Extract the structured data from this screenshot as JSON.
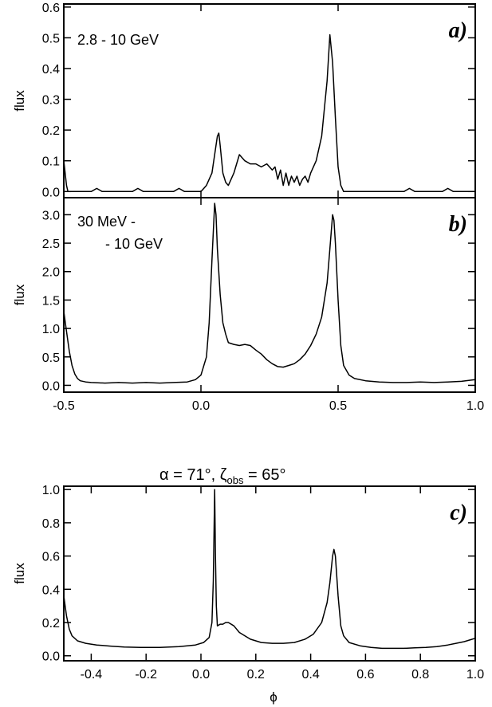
{
  "figure": {
    "title_prefix": "α = 71°,   ζ",
    "title_sub": "obs",
    "title_suffix": " = 65°",
    "xlabel": "ϕ"
  },
  "chart_data": [
    {
      "type": "line",
      "panel": "a)",
      "annotation": [
        "2.8 - 10 GeV"
      ],
      "ylabel": "flux",
      "xlim": [
        -0.5,
        1.0
      ],
      "ylim": [
        -0.02,
        0.61
      ],
      "yticks": [
        0.0,
        0.1,
        0.2,
        0.3,
        0.4,
        0.5,
        0.6
      ],
      "ytick_labels": [
        "0.0",
        "0.1",
        "0.2",
        "0.3",
        "0.4",
        "0.5",
        "0.6"
      ],
      "xticks": [
        -0.5,
        0.0,
        0.5,
        1.0
      ],
      "xtick_labels": [],
      "x": [
        -0.5,
        -0.49,
        -0.485,
        -0.47,
        -0.45,
        -0.43,
        -0.4,
        -0.38,
        -0.36,
        -0.3,
        -0.25,
        -0.23,
        -0.21,
        -0.19,
        -0.15,
        -0.1,
        -0.08,
        -0.06,
        -0.04,
        0.0,
        0.02,
        0.04,
        0.05,
        0.06,
        0.065,
        0.07,
        0.08,
        0.09,
        0.1,
        0.12,
        0.14,
        0.16,
        0.18,
        0.2,
        0.22,
        0.24,
        0.26,
        0.27,
        0.28,
        0.29,
        0.3,
        0.31,
        0.32,
        0.33,
        0.34,
        0.35,
        0.36,
        0.37,
        0.38,
        0.39,
        0.4,
        0.42,
        0.44,
        0.46,
        0.47,
        0.48,
        0.49,
        0.5,
        0.51,
        0.52,
        0.54,
        0.58,
        0.62,
        0.66,
        0.7,
        0.74,
        0.76,
        0.78,
        0.8,
        0.84,
        0.88,
        0.9,
        0.92,
        0.94,
        0.96,
        0.98,
        1.0
      ],
      "y": [
        0.1,
        0.02,
        0.0,
        0.0,
        0.0,
        0.0,
        0.0,
        0.01,
        0.0,
        0.0,
        0.0,
        0.01,
        0.0,
        0.0,
        0.0,
        0.0,
        0.01,
        0.0,
        0.0,
        0.0,
        0.02,
        0.06,
        0.12,
        0.18,
        0.19,
        0.15,
        0.06,
        0.03,
        0.02,
        0.06,
        0.12,
        0.1,
        0.09,
        0.09,
        0.08,
        0.09,
        0.07,
        0.08,
        0.04,
        0.07,
        0.02,
        0.06,
        0.02,
        0.05,
        0.03,
        0.05,
        0.02,
        0.04,
        0.05,
        0.03,
        0.06,
        0.1,
        0.18,
        0.36,
        0.51,
        0.42,
        0.24,
        0.08,
        0.02,
        0.0,
        0.0,
        0.0,
        0.0,
        0.0,
        0.0,
        0.0,
        0.01,
        0.0,
        0.0,
        0.0,
        0.0,
        0.01,
        0.0,
        0.0,
        0.0,
        0.0,
        0.0
      ]
    },
    {
      "type": "line",
      "panel": "b)",
      "annotation": [
        "30 MeV -",
        "- 10 GeV"
      ],
      "ylabel": "flux",
      "xlim": [
        -0.5,
        1.0
      ],
      "ylim": [
        -0.12,
        3.3
      ],
      "yticks": [
        0.0,
        0.5,
        1.0,
        1.5,
        2.0,
        2.5,
        3.0
      ],
      "ytick_labels": [
        "0.0",
        "0.5",
        "1.0",
        "1.5",
        "2.0",
        "2.5",
        "3.0"
      ],
      "xticks": [
        -0.5,
        0.0,
        0.5,
        1.0
      ],
      "xtick_labels": [
        "-0.5",
        "0.0",
        "0.5",
        "1.0"
      ],
      "x": [
        -0.5,
        -0.49,
        -0.48,
        -0.47,
        -0.46,
        -0.45,
        -0.44,
        -0.42,
        -0.4,
        -0.35,
        -0.3,
        -0.25,
        -0.2,
        -0.15,
        -0.1,
        -0.05,
        -0.02,
        0.0,
        0.02,
        0.03,
        0.04,
        0.05,
        0.055,
        0.06,
        0.07,
        0.08,
        0.09,
        0.1,
        0.12,
        0.14,
        0.16,
        0.18,
        0.2,
        0.22,
        0.24,
        0.26,
        0.28,
        0.3,
        0.32,
        0.34,
        0.36,
        0.38,
        0.4,
        0.42,
        0.44,
        0.46,
        0.47,
        0.48,
        0.485,
        0.49,
        0.5,
        0.51,
        0.52,
        0.54,
        0.56,
        0.6,
        0.65,
        0.7,
        0.75,
        0.8,
        0.85,
        0.9,
        0.95,
        1.0
      ],
      "y": [
        1.3,
        0.95,
        0.6,
        0.35,
        0.2,
        0.12,
        0.08,
        0.06,
        0.05,
        0.04,
        0.05,
        0.04,
        0.05,
        0.04,
        0.05,
        0.06,
        0.1,
        0.18,
        0.5,
        1.1,
        2.2,
        3.2,
        3.0,
        2.4,
        1.6,
        1.1,
        0.9,
        0.75,
        0.72,
        0.7,
        0.72,
        0.7,
        0.62,
        0.55,
        0.45,
        0.38,
        0.33,
        0.32,
        0.35,
        0.38,
        0.45,
        0.55,
        0.7,
        0.9,
        1.2,
        1.8,
        2.4,
        3.0,
        2.9,
        2.5,
        1.5,
        0.7,
        0.35,
        0.18,
        0.12,
        0.08,
        0.06,
        0.05,
        0.05,
        0.06,
        0.05,
        0.06,
        0.07,
        0.1
      ]
    },
    {
      "type": "line",
      "panel": "c)",
      "annotation": [],
      "ylabel": "flux",
      "xlim": [
        -0.5,
        1.0
      ],
      "ylim": [
        -0.03,
        1.02
      ],
      "yticks": [
        0.0,
        0.2,
        0.4,
        0.6,
        0.8,
        1.0
      ],
      "ytick_labels": [
        "0.0",
        "0.2",
        "0.4",
        "0.6",
        "0.8",
        "1.0"
      ],
      "xticks": [
        -0.4,
        -0.2,
        0.0,
        0.2,
        0.4,
        0.6,
        0.8,
        1.0
      ],
      "xtick_labels": [
        "-0.4",
        "-0.2",
        "0.0",
        "0.2",
        "0.4",
        "0.6",
        "0.8",
        "1.0"
      ],
      "x": [
        -0.5,
        -0.495,
        -0.49,
        -0.48,
        -0.47,
        -0.45,
        -0.42,
        -0.38,
        -0.33,
        -0.28,
        -0.22,
        -0.15,
        -0.08,
        -0.02,
        0.01,
        0.03,
        0.04,
        0.045,
        0.05,
        0.053,
        0.056,
        0.06,
        0.07,
        0.08,
        0.09,
        0.1,
        0.12,
        0.14,
        0.18,
        0.22,
        0.26,
        0.3,
        0.34,
        0.38,
        0.41,
        0.44,
        0.46,
        0.47,
        0.48,
        0.485,
        0.49,
        0.5,
        0.51,
        0.52,
        0.54,
        0.58,
        0.62,
        0.66,
        0.7,
        0.74,
        0.78,
        0.82,
        0.86,
        0.9,
        0.93,
        0.96,
        0.98,
        1.0
      ],
      "y": [
        0.36,
        0.3,
        0.24,
        0.16,
        0.12,
        0.09,
        0.075,
        0.065,
        0.058,
        0.053,
        0.05,
        0.05,
        0.055,
        0.065,
        0.08,
        0.11,
        0.2,
        0.45,
        1.0,
        0.6,
        0.3,
        0.18,
        0.19,
        0.19,
        0.2,
        0.2,
        0.18,
        0.14,
        0.1,
        0.08,
        0.075,
        0.075,
        0.08,
        0.1,
        0.13,
        0.2,
        0.32,
        0.44,
        0.6,
        0.64,
        0.6,
        0.36,
        0.18,
        0.12,
        0.08,
        0.06,
        0.05,
        0.045,
        0.045,
        0.045,
        0.048,
        0.05,
        0.055,
        0.065,
        0.075,
        0.085,
        0.095,
        0.105
      ]
    }
  ]
}
